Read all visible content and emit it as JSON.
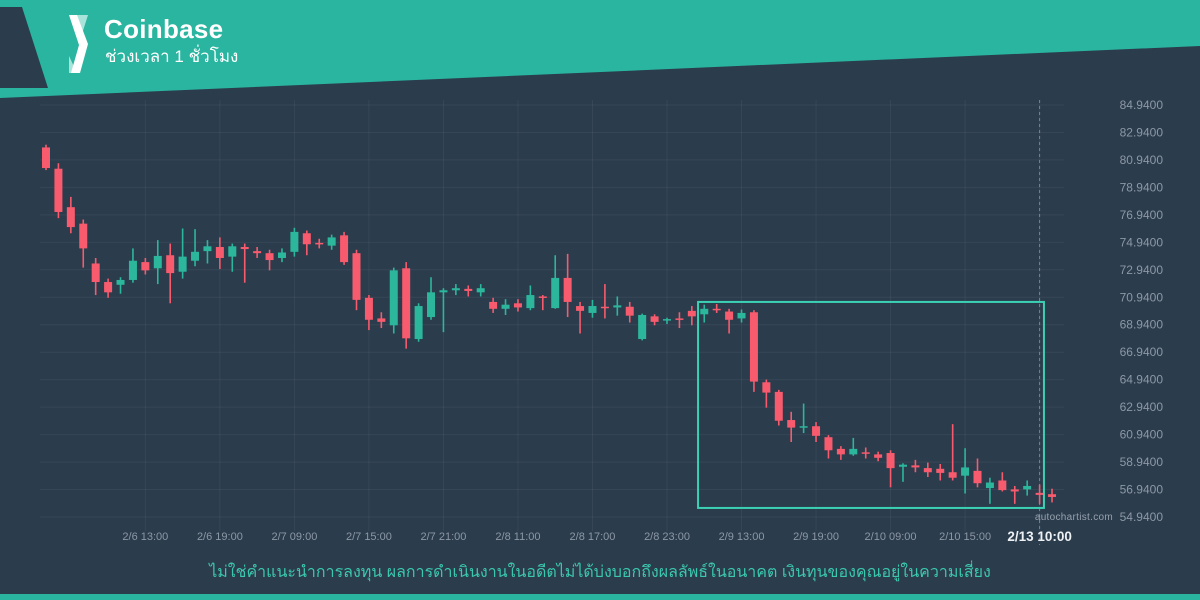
{
  "header": {
    "brand": "Coinbase",
    "subtitle": "ช่วงเวลา 1 ชั่วโมง"
  },
  "watermark": "autochartist.com",
  "footer": {
    "disclaimer": "ไม่ใช่คำแนะนำการลงทุน ผลการดำเนินงานในอดีตไม่ได้บ่งบอกถึงผลลัพธ์ในอนาคต เงินทุนของคุณอยู่ในความเสี่ยง"
  },
  "colors": {
    "background": "#2b3c4d",
    "header_teal": "#2ab5a0",
    "logo_mint": "#a9e4da",
    "candle_up": "#2cb79d",
    "candle_down": "#f75b6d",
    "highlight_box": "#3bd1b5",
    "axis_text": "#8d98a5",
    "emphasis_text": "#eef1f4",
    "disclaimer_text": "#3bc8af",
    "watermark_text": "#97a1ac",
    "grid_line": "rgba(255,255,255,0.055)",
    "dashed_line": "rgba(175,185,195,0.55)"
  },
  "chart_data": {
    "type": "candlestick",
    "title": "Coinbase ช่วงเวลา 1 ชั่วโมง",
    "timeframe": "1 hour",
    "grid": true,
    "y_axis": {
      "side": "right",
      "max": 84.94,
      "min": 54.94,
      "step": 2,
      "labels": [
        "84.9400",
        "82.9400",
        "80.9400",
        "78.9400",
        "76.9400",
        "74.9400",
        "72.9400",
        "70.9400",
        "68.9400",
        "66.9400",
        "64.9400",
        "62.9400",
        "60.9400",
        "58.9400",
        "56.9400",
        "54.9400"
      ]
    },
    "x_axis": {
      "ticks": [
        {
          "text": "2/6 13:00",
          "index": 8
        },
        {
          "text": "2/6 19:00",
          "index": 14
        },
        {
          "text": "2/7 09:00",
          "index": 20
        },
        {
          "text": "2/7 15:00",
          "index": 26
        },
        {
          "text": "2/7 21:00",
          "index": 32
        },
        {
          "text": "2/8 11:00",
          "index": 38
        },
        {
          "text": "2/8 17:00",
          "index": 44
        },
        {
          "text": "2/8 23:00",
          "index": 50
        },
        {
          "text": "2/9 13:00",
          "index": 56
        },
        {
          "text": "2/9 19:00",
          "index": 62
        },
        {
          "text": "2/10 09:00",
          "index": 68
        },
        {
          "text": "2/10 15:00",
          "index": 74
        },
        {
          "text": "2/13 10:00",
          "index": 80,
          "emphasis": true
        }
      ]
    },
    "candles_format": [
      "open",
      "high",
      "low",
      "close"
    ],
    "candles": [
      [
        81.85,
        82.05,
        80.2,
        80.35
      ],
      [
        80.3,
        80.7,
        76.7,
        77.15
      ],
      [
        77.5,
        78.25,
        75.6,
        76.05
      ],
      [
        76.3,
        76.6,
        73.1,
        74.5
      ],
      [
        73.4,
        73.8,
        71.1,
        72.05
      ],
      [
        72.05,
        72.3,
        70.9,
        71.3
      ],
      [
        71.85,
        72.4,
        71.2,
        72.2
      ],
      [
        72.2,
        74.5,
        72.0,
        73.6
      ],
      [
        73.5,
        73.8,
        72.6,
        72.9
      ],
      [
        73.05,
        75.1,
        71.9,
        73.95
      ],
      [
        74.0,
        74.85,
        70.5,
        72.7
      ],
      [
        72.8,
        75.95,
        72.3,
        73.9
      ],
      [
        73.6,
        75.9,
        73.2,
        74.25
      ],
      [
        74.3,
        75.1,
        73.4,
        74.65
      ],
      [
        74.6,
        75.3,
        73.0,
        73.8
      ],
      [
        73.9,
        74.85,
        72.8,
        74.65
      ],
      [
        74.6,
        74.85,
        72.0,
        74.45
      ],
      [
        74.3,
        74.6,
        73.8,
        74.15
      ],
      [
        74.15,
        74.4,
        72.9,
        73.65
      ],
      [
        73.8,
        74.5,
        73.5,
        74.2
      ],
      [
        74.25,
        76.0,
        73.9,
        75.7
      ],
      [
        75.6,
        75.8,
        74.0,
        74.8
      ],
      [
        74.9,
        75.2,
        74.5,
        74.8
      ],
      [
        74.7,
        75.5,
        74.4,
        75.3
      ],
      [
        75.45,
        75.7,
        73.3,
        73.5
      ],
      [
        74.15,
        74.4,
        70.0,
        70.75
      ],
      [
        70.9,
        71.1,
        68.55,
        69.3
      ],
      [
        69.4,
        69.85,
        68.7,
        69.15
      ],
      [
        68.9,
        73.1,
        68.3,
        72.9
      ],
      [
        73.05,
        73.5,
        67.2,
        67.95
      ],
      [
        67.9,
        70.5,
        67.7,
        70.3
      ],
      [
        69.5,
        72.4,
        69.3,
        71.3
      ],
      [
        71.3,
        71.6,
        68.4,
        71.45
      ],
      [
        71.45,
        71.9,
        71.1,
        71.6
      ],
      [
        71.55,
        71.8,
        71.0,
        71.4
      ],
      [
        71.3,
        71.9,
        71.0,
        71.6
      ],
      [
        70.6,
        70.9,
        69.8,
        70.1
      ],
      [
        70.1,
        70.8,
        69.65,
        70.4
      ],
      [
        70.5,
        70.8,
        69.9,
        70.2
      ],
      [
        70.15,
        71.8,
        70.0,
        71.1
      ],
      [
        71.0,
        71.1,
        70.0,
        70.9
      ],
      [
        70.15,
        74.0,
        70.1,
        72.35
      ],
      [
        72.35,
        74.1,
        69.5,
        70.6
      ],
      [
        70.3,
        70.6,
        68.3,
        69.95
      ],
      [
        69.8,
        70.75,
        69.45,
        70.3
      ],
      [
        70.25,
        71.9,
        69.4,
        70.2
      ],
      [
        70.2,
        71.0,
        69.6,
        70.35
      ],
      [
        70.25,
        70.6,
        69.1,
        69.6
      ],
      [
        67.9,
        69.75,
        67.8,
        69.65
      ],
      [
        69.55,
        69.7,
        68.9,
        69.15
      ],
      [
        69.25,
        69.45,
        69.0,
        69.35
      ],
      [
        69.4,
        69.85,
        68.7,
        69.3
      ],
      [
        69.95,
        70.3,
        68.9,
        69.55
      ],
      [
        69.7,
        70.4,
        69.1,
        70.1
      ],
      [
        70.1,
        70.45,
        69.8,
        70.05
      ],
      [
        69.9,
        70.1,
        68.3,
        69.3
      ],
      [
        69.4,
        70.05,
        69.1,
        69.8
      ],
      [
        69.85,
        70.0,
        64.05,
        64.8
      ],
      [
        64.75,
        64.95,
        62.9,
        64.0
      ],
      [
        64.05,
        64.2,
        61.6,
        61.95
      ],
      [
        62.0,
        62.6,
        60.4,
        61.45
      ],
      [
        61.45,
        63.2,
        61.05,
        61.55
      ],
      [
        61.55,
        61.85,
        60.4,
        60.85
      ],
      [
        60.75,
        60.9,
        59.2,
        59.8
      ],
      [
        59.9,
        60.1,
        59.1,
        59.5
      ],
      [
        59.5,
        60.7,
        59.4,
        59.9
      ],
      [
        59.65,
        60.0,
        59.2,
        59.55
      ],
      [
        59.5,
        59.7,
        59.0,
        59.25
      ],
      [
        59.6,
        59.8,
        57.1,
        58.5
      ],
      [
        58.6,
        58.85,
        57.5,
        58.75
      ],
      [
        58.7,
        59.1,
        58.2,
        58.55
      ],
      [
        58.5,
        58.9,
        57.85,
        58.2
      ],
      [
        58.45,
        58.8,
        57.6,
        58.15
      ],
      [
        58.2,
        61.7,
        57.6,
        57.8
      ],
      [
        57.95,
        59.95,
        56.65,
        58.55
      ],
      [
        58.3,
        59.2,
        57.1,
        57.4
      ],
      [
        57.05,
        57.8,
        55.9,
        57.45
      ],
      [
        57.6,
        58.2,
        56.8,
        56.9
      ],
      [
        56.95,
        57.2,
        55.9,
        56.8
      ],
      [
        56.95,
        57.6,
        56.5,
        57.2
      ],
      [
        56.7,
        57.3,
        55.9,
        56.55
      ],
      [
        56.6,
        57.0,
        56.0,
        56.4
      ]
    ],
    "annotations": {
      "highlight_rect": {
        "start_index": 52.5,
        "end_index": 80.35,
        "price_top": 70.6,
        "price_bottom": 55.6
      },
      "dashed_vline_index": 80
    }
  }
}
